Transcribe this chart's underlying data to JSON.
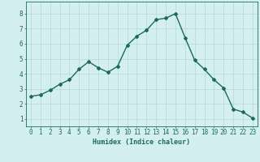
{
  "x": [
    0,
    1,
    2,
    3,
    4,
    5,
    6,
    7,
    8,
    9,
    10,
    11,
    12,
    13,
    14,
    15,
    16,
    17,
    18,
    19,
    20,
    21,
    22,
    23
  ],
  "y": [
    2.5,
    2.6,
    2.9,
    3.3,
    3.6,
    4.3,
    4.8,
    4.4,
    4.1,
    4.5,
    5.9,
    6.5,
    6.9,
    7.6,
    7.7,
    8.0,
    6.4,
    4.9,
    4.3,
    3.6,
    3.05,
    1.65,
    1.45,
    1.05
  ],
  "line_color": "#1a6b5a",
  "marker": "D",
  "marker_size": 2.0,
  "bg_color": "#d4efef",
  "grid_color": "#b8d8d8",
  "xlabel": "Humidex (Indice chaleur)",
  "xlim": [
    -0.5,
    23.5
  ],
  "ylim": [
    0.5,
    8.8
  ],
  "yticks": [
    1,
    2,
    3,
    4,
    5,
    6,
    7,
    8
  ],
  "xticks": [
    0,
    1,
    2,
    3,
    4,
    5,
    6,
    7,
    8,
    9,
    10,
    11,
    12,
    13,
    14,
    15,
    16,
    17,
    18,
    19,
    20,
    21,
    22,
    23
  ],
  "xlabel_fontsize": 6.0,
  "tick_fontsize": 5.5,
  "line_width": 1.0
}
